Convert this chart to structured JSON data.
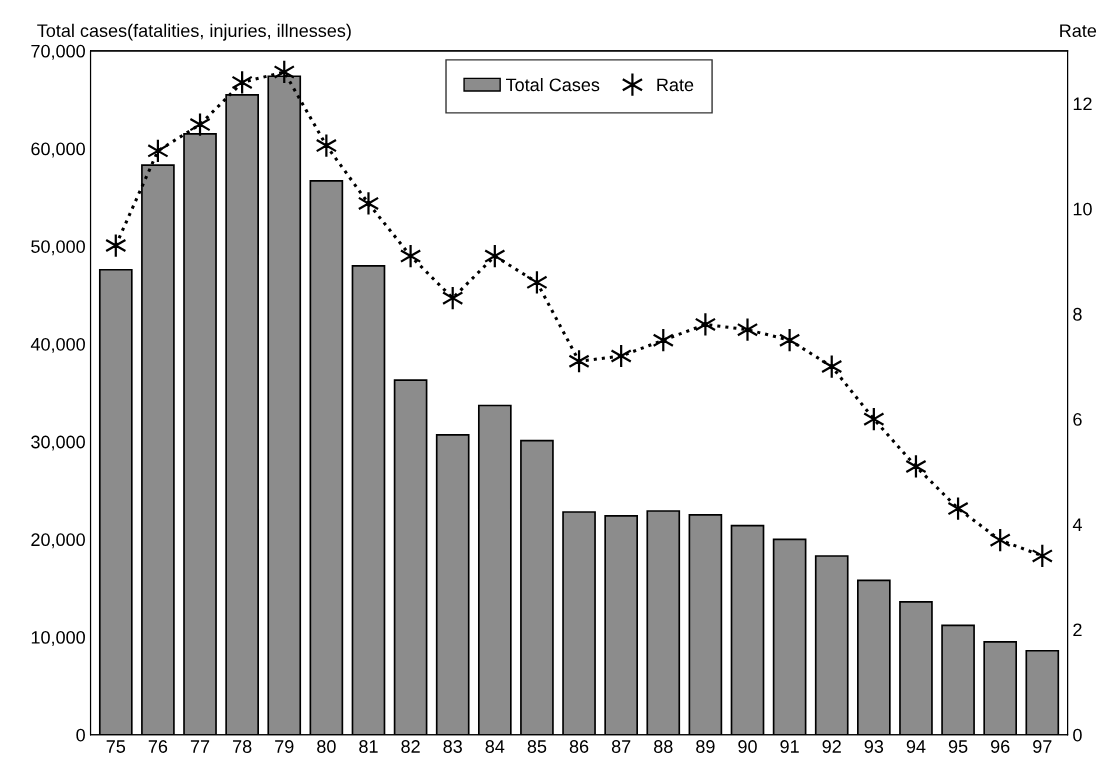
{
  "chart_data": {
    "type": "bar",
    "ylabel": "Total cases(fatalities, injuries, illnesses)",
    "y2label": "Rate",
    "categories": [
      "75",
      "76",
      "77",
      "78",
      "79",
      "80",
      "81",
      "82",
      "83",
      "84",
      "85",
      "86",
      "87",
      "88",
      "89",
      "90",
      "91",
      "92",
      "93",
      "94",
      "95",
      "96",
      "97"
    ],
    "series": [
      {
        "name": "Total Cases",
        "color": "#8c8c8c",
        "values": [
          47600,
          58300,
          61500,
          65500,
          67400,
          56700,
          48000,
          36300,
          30700,
          33700,
          30100,
          22800,
          22400,
          22900,
          22500,
          21400,
          20000,
          18300,
          15800,
          13600,
          11200,
          9500,
          8600
        ]
      },
      {
        "name": "Rate",
        "type": "line",
        "axis": "y2",
        "color": "#000000",
        "marker": "cross",
        "line_style": "dotted",
        "values": [
          9.3,
          11.1,
          11.6,
          12.4,
          12.6,
          11.2,
          10.1,
          9.1,
          8.3,
          9.1,
          8.6,
          7.1,
          7.2,
          7.5,
          7.8,
          7.7,
          7.5,
          7.0,
          6.0,
          5.1,
          4.3,
          3.7,
          3.4
        ]
      }
    ],
    "ylim": [
      0,
      70000
    ],
    "yticks": [
      {
        "value": 0,
        "label": "0"
      },
      {
        "value": 10000,
        "label": "10,000"
      },
      {
        "value": 20000,
        "label": "20,000"
      },
      {
        "value": 30000,
        "label": "30,000"
      },
      {
        "value": 40000,
        "label": "40,000"
      },
      {
        "value": 50000,
        "label": "50,000"
      },
      {
        "value": 60000,
        "label": "60,000"
      },
      {
        "value": 70000,
        "label": "70,000"
      }
    ],
    "y2lim": [
      0,
      13
    ],
    "y2ticks": [
      0,
      2,
      4,
      6,
      8,
      10,
      12
    ],
    "grid": false,
    "legend": "top"
  }
}
